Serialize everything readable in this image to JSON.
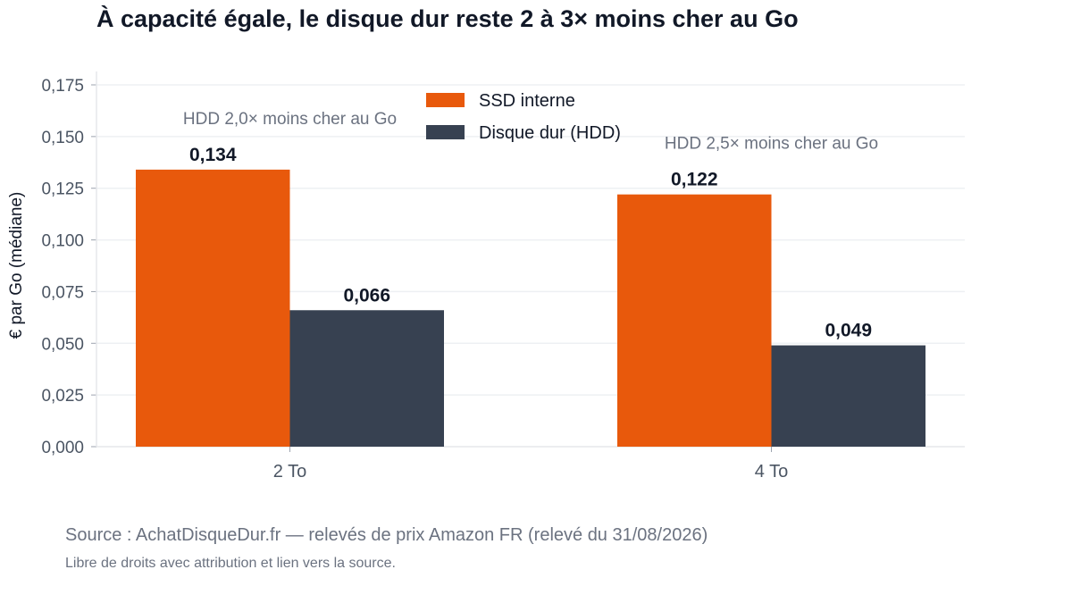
{
  "chart_data": {
    "type": "bar",
    "title": "À capacité égale, le disque dur reste 2 à 3× moins cher au Go",
    "xlabel": "",
    "ylabel": "€ par Go (médiane)",
    "ylim": [
      0,
      0.18
    ],
    "yticks": [
      "0,000",
      "0,025",
      "0,050",
      "0,075",
      "0,100",
      "0,125",
      "0,150",
      "0,175"
    ],
    "ytick_values": [
      0,
      0.025,
      0.05,
      0.075,
      0.1,
      0.125,
      0.15,
      0.175
    ],
    "categories": [
      "2 To",
      "4 To"
    ],
    "series": [
      {
        "name": "SSD interne",
        "color": "#e8590c",
        "values": [
          0.134,
          0.122
        ],
        "labels": [
          "0,134",
          "0,122"
        ]
      },
      {
        "name": "Disque dur (HDD)",
        "color": "#374151",
        "values": [
          0.066,
          0.049
        ],
        "labels": [
          "0,066",
          "0,049"
        ]
      }
    ],
    "annotations": [
      "HDD 2,0× moins cher au Go",
      "HDD 2,5× moins cher au Go"
    ],
    "legend_position": "top-center",
    "grid": true
  },
  "source": "Source : AchatDisqueDur.fr — relevés de prix Amazon FR (relevé du 31/08/2026)",
  "license": "Libre de droits avec attribution et lien vers la source."
}
